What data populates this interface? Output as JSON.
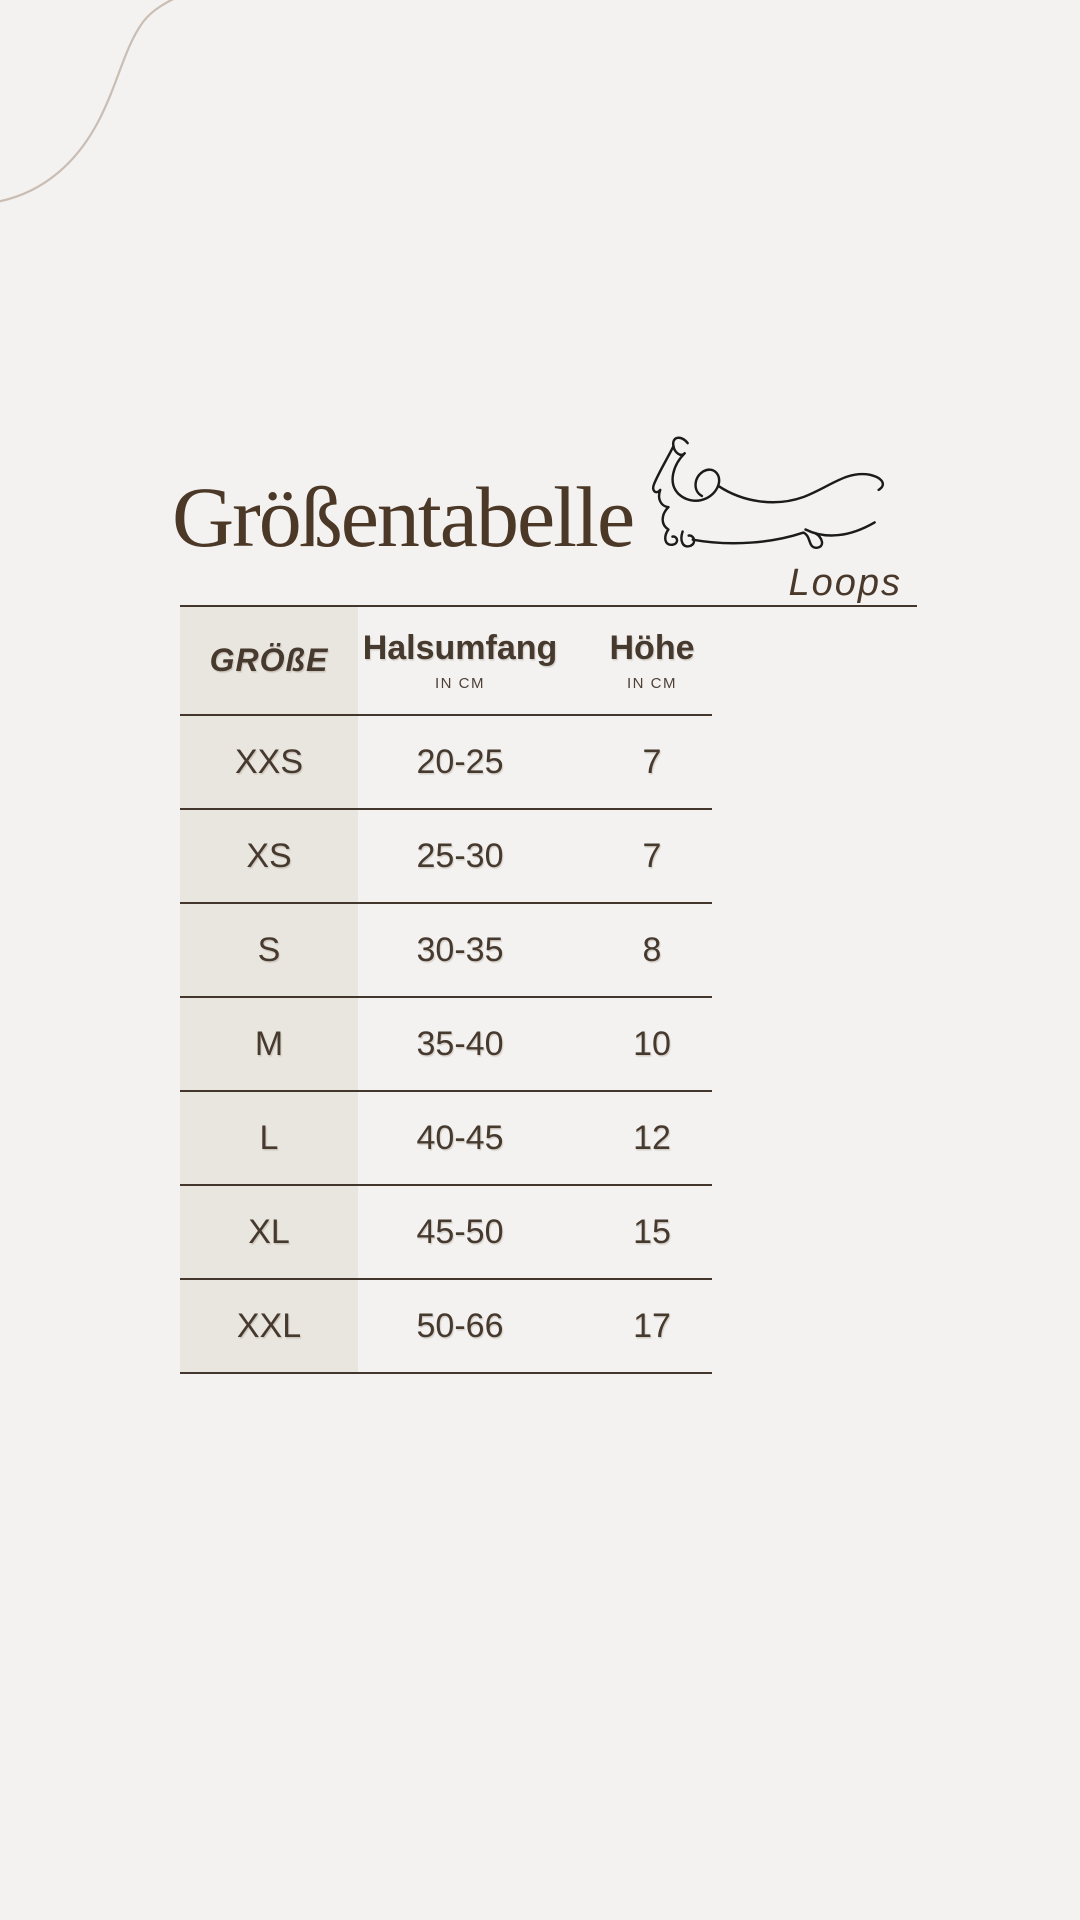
{
  "colors": {
    "bg": "#f3f2f0",
    "panel": "#e9e6e0",
    "line": "#43372d",
    "text": "#46392e",
    "subtext": "#4d4036",
    "title": "#4c3827",
    "brand": "#4a382b",
    "decor": "#c9bdb4",
    "drawing": "#1b1b1b"
  },
  "header": {
    "title": "Größentabelle",
    "brand": "Loops"
  },
  "icons": {
    "dachshund": "dachshund-line-drawing",
    "corner_curve": "corner-curve-decoration"
  },
  "table": {
    "columns": [
      {
        "label": "GRÖßE",
        "sublabel": ""
      },
      {
        "label": "Halsumfang",
        "sublabel": "IN CM"
      },
      {
        "label": "Höhe",
        "sublabel": "IN CM"
      }
    ],
    "rows": [
      {
        "size": "XXS",
        "neck": "20-25",
        "height": "7"
      },
      {
        "size": "XS",
        "neck": "25-30",
        "height": "7"
      },
      {
        "size": "S",
        "neck": "30-35",
        "height": "8"
      },
      {
        "size": "M",
        "neck": "35-40",
        "height": "10"
      },
      {
        "size": "L",
        "neck": "40-45",
        "height": "12"
      },
      {
        "size": "XL",
        "neck": "45-50",
        "height": "15"
      },
      {
        "size": "XXL",
        "neck": "50-66",
        "height": "17"
      }
    ]
  },
  "chart_data": {
    "type": "table",
    "title": "Größentabelle",
    "brand": "Loops",
    "columns": [
      "GRÖßE",
      "Halsumfang (IN CM)",
      "Höhe (IN CM)"
    ],
    "rows": [
      [
        "XXS",
        "20-25",
        "7"
      ],
      [
        "XS",
        "25-30",
        "7"
      ],
      [
        "S",
        "30-35",
        "8"
      ],
      [
        "M",
        "35-40",
        "10"
      ],
      [
        "L",
        "40-45",
        "12"
      ],
      [
        "XL",
        "45-50",
        "15"
      ],
      [
        "XXL",
        "50-66",
        "17"
      ]
    ]
  }
}
